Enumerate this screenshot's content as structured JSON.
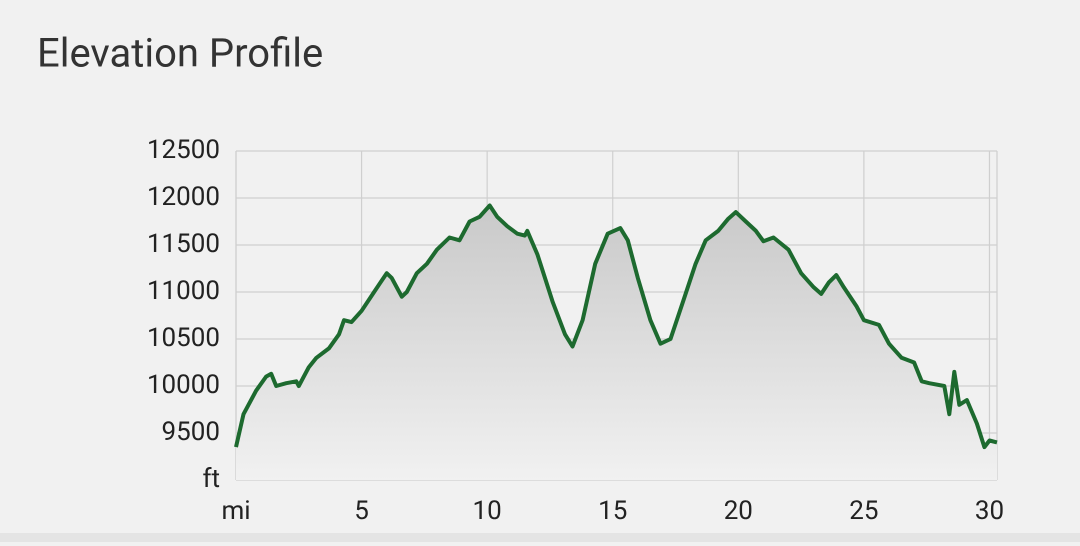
{
  "chart_data": {
    "type": "line",
    "title": "Elevation Profile",
    "color": "#1d6a2f",
    "grid": true,
    "xlim": [
      0,
      30.3
    ],
    "xticks": [
      {
        "value": 0,
        "label": "mi"
      },
      5,
      10,
      15,
      20,
      25,
      30
    ],
    "ylim": [
      9000,
      12500
    ],
    "yticks": [
      {
        "value": 9000,
        "label": "ft"
      },
      9500,
      10000,
      10500,
      11000,
      11500,
      12000,
      12500
    ],
    "x": [
      0,
      0.3,
      0.8,
      1.2,
      1.4,
      1.6,
      2,
      2.4,
      2.5,
      2.9,
      3.2,
      3.7,
      4.1,
      4.3,
      4.6,
      5,
      5.5,
      6,
      6.2,
      6.6,
      6.8,
      7.2,
      7.6,
      8,
      8.5,
      8.9,
      9.3,
      9.7,
      10.1,
      10.4,
      10.8,
      11.2,
      11.5,
      11.6,
      12,
      12.6,
      13.1,
      13.4,
      13.8,
      14.3,
      14.8,
      15.3,
      15.6,
      16,
      16.5,
      16.9,
      17.3,
      17.8,
      18.3,
      18.7,
      19.2,
      19.6,
      19.9,
      20.3,
      20.7,
      21,
      21.4,
      22,
      22.5,
      23,
      23.3,
      23.6,
      23.9,
      24.2,
      24.7,
      25,
      25.6,
      26,
      26.5,
      27,
      27.3,
      27.6,
      28.2,
      28.4,
      28.6,
      28.8,
      29.1,
      29.5,
      29.8,
      30,
      30.3
    ],
    "values": [
      9350,
      9700,
      9950,
      10100,
      10130,
      10000,
      10030,
      10050,
      10000,
      10200,
      10300,
      10400,
      10550,
      10700,
      10680,
      10800,
      11000,
      11200,
      11150,
      10950,
      11000,
      11200,
      11300,
      11450,
      11580,
      11550,
      11750,
      11800,
      11920,
      11800,
      11700,
      11620,
      11600,
      11650,
      11400,
      10900,
      10550,
      10420,
      10700,
      11300,
      11620,
      11680,
      11550,
      11150,
      10700,
      10450,
      10500,
      10900,
      11300,
      11550,
      11650,
      11780,
      11850,
      11750,
      11650,
      11540,
      11580,
      11450,
      11200,
      11050,
      10980,
      11100,
      11180,
      11050,
      10850,
      10700,
      10650,
      10450,
      10300,
      10250,
      10050,
      10030,
      10000,
      9700,
      10150,
      9800,
      9850,
      9600,
      9350,
      9420,
      9400
    ]
  }
}
